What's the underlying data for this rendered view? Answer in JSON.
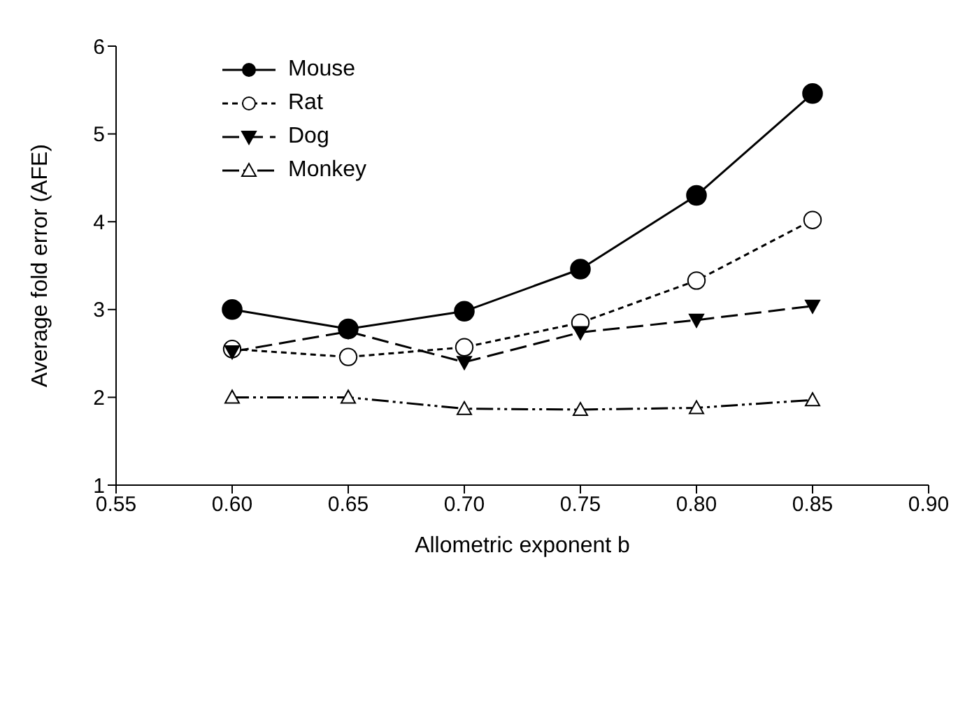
{
  "chart_data": {
    "type": "line",
    "xlabel": "Allometric exponent b",
    "ylabel": "Average fold error (AFE)",
    "x": [
      0.6,
      0.65,
      0.7,
      0.75,
      0.8,
      0.85
    ],
    "series": [
      {
        "name": "Mouse",
        "color": "#000000",
        "marker": "circle",
        "line_style": "solid",
        "values": [
          3.0,
          2.78,
          2.98,
          3.46,
          4.3,
          5.46
        ]
      },
      {
        "name": "Rat",
        "color": "#000000",
        "marker": "circle-open",
        "line_style": "dotted",
        "values": [
          2.55,
          2.46,
          2.57,
          2.85,
          3.33,
          4.02
        ]
      },
      {
        "name": "Dog",
        "color": "#000000",
        "marker": "triangle-down",
        "line_style": "dashed",
        "values": [
          2.52,
          2.75,
          2.4,
          2.74,
          2.88,
          3.04
        ]
      },
      {
        "name": "Monkey",
        "color": "#000000",
        "marker": "triangle-open",
        "line_style": "dashdotdot",
        "values": [
          2.0,
          2.0,
          1.87,
          1.86,
          1.88,
          1.97
        ]
      }
    ],
    "xlim": [
      0.55,
      0.9
    ],
    "xticks": [
      {
        "value": 0.55,
        "label": "0.55"
      },
      {
        "value": 0.6,
        "label": "0.60"
      },
      {
        "value": 0.65,
        "label": "0.65"
      },
      {
        "value": 0.7,
        "label": "0.70"
      },
      {
        "value": 0.75,
        "label": "0.75"
      },
      {
        "value": 0.8,
        "label": "0.80"
      },
      {
        "value": 0.85,
        "label": "0.85"
      },
      {
        "value": 0.9,
        "label": "0.90"
      }
    ],
    "ylim": [
      1,
      6
    ],
    "yticks": [
      1,
      2,
      3,
      4,
      5,
      6
    ],
    "grid": false,
    "legend": "top left"
  }
}
